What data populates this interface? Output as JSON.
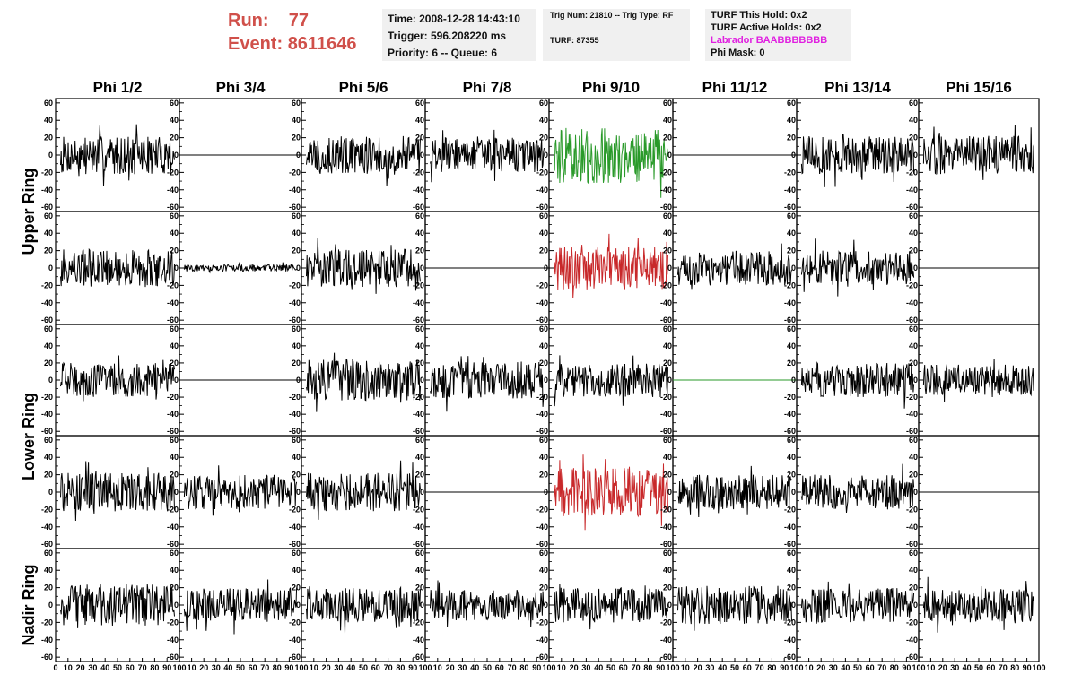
{
  "header": {
    "run_label": "Run:",
    "run_value": "77",
    "event_label": "Event:",
    "event_value": "8611646",
    "time": "Time: 2008-12-28 14:43:10",
    "trigger": "Trigger: 596.208220 ms",
    "priority": "Priority: 6 -- Queue: 6",
    "trig_num": "Trig Num: 21810 -- Trig Type: RF",
    "turf": "TURF: 87355",
    "turf_hold": "TURF This Hold: 0x2",
    "turf_active": "TURF Active Holds: 0x2",
    "labrador": "Labrador BAABBBBBBB",
    "phi_mask": "Phi Mask: 0"
  },
  "colors": {
    "header_red": "#d0504a",
    "labrador_magenta": "#e020e0",
    "trace_black": "#000000",
    "trace_green": "#2a9a2a",
    "trace_red": "#c8282a"
  },
  "chart_data": {
    "type": "line",
    "columns": [
      "Phi 1/2",
      "Phi 3/4",
      "Phi 5/6",
      "Phi 7/8",
      "Phi 9/10",
      "Phi 11/12",
      "Phi 13/14",
      "Phi 15/16"
    ],
    "rows": [
      "Upper Ring",
      "Upper Ring",
      "Lower Ring",
      "Lower Ring",
      "Nadir Ring"
    ],
    "row_labels": [
      "Upper Ring",
      "Lower Ring",
      "Nadir Ring"
    ],
    "xlim": [
      0,
      100
    ],
    "ylim": [
      -65,
      65
    ],
    "x_ticks": [
      "0",
      "10",
      "20",
      "30",
      "40",
      "50",
      "60",
      "70",
      "80",
      "90",
      "100"
    ],
    "y_ticks": [
      60,
      40,
      20,
      0,
      -20,
      -40,
      -60
    ],
    "y_tick_labels": [
      "60",
      "40",
      "20",
      "0",
      "-20",
      "-40",
      "-60"
    ],
    "panels": [
      [
        {
          "amp": 22,
          "color": "black"
        },
        {
          "amp": 0,
          "color": "black"
        },
        {
          "amp": 22,
          "color": "black"
        },
        {
          "amp": 20,
          "color": "black"
        },
        {
          "amp": 32,
          "color": "green"
        },
        {
          "amp": 0,
          "color": "black"
        },
        {
          "amp": 22,
          "color": "black"
        },
        {
          "amp": 22,
          "color": "black"
        }
      ],
      [
        {
          "amp": 22,
          "color": "black"
        },
        {
          "amp": 4,
          "color": "black"
        },
        {
          "amp": 22,
          "color": "black"
        },
        {
          "amp": 0,
          "color": "black"
        },
        {
          "amp": 25,
          "color": "red"
        },
        {
          "amp": 20,
          "color": "black"
        },
        {
          "amp": 20,
          "color": "black"
        },
        {
          "amp": 0,
          "color": "black"
        }
      ],
      [
        {
          "amp": 20,
          "color": "black"
        },
        {
          "amp": 0,
          "color": "black"
        },
        {
          "amp": 24,
          "color": "black"
        },
        {
          "amp": 22,
          "color": "black"
        },
        {
          "amp": 20,
          "color": "black"
        },
        {
          "amp": 0,
          "color": "green"
        },
        {
          "amp": 20,
          "color": "black"
        },
        {
          "amp": 18,
          "color": "black"
        }
      ],
      [
        {
          "amp": 22,
          "color": "black"
        },
        {
          "amp": 20,
          "color": "black"
        },
        {
          "amp": 22,
          "color": "black"
        },
        {
          "amp": 0,
          "color": "black"
        },
        {
          "amp": 28,
          "color": "red"
        },
        {
          "amp": 20,
          "color": "black"
        },
        {
          "amp": 20,
          "color": "black"
        },
        {
          "amp": 0,
          "color": "black"
        }
      ],
      [
        {
          "amp": 24,
          "color": "black"
        },
        {
          "amp": 20,
          "color": "black"
        },
        {
          "amp": 20,
          "color": "black"
        },
        {
          "amp": 18,
          "color": "black"
        },
        {
          "amp": 20,
          "color": "black"
        },
        {
          "amp": 22,
          "color": "black"
        },
        {
          "amp": 20,
          "color": "black"
        },
        {
          "amp": 20,
          "color": "black"
        }
      ]
    ]
  }
}
